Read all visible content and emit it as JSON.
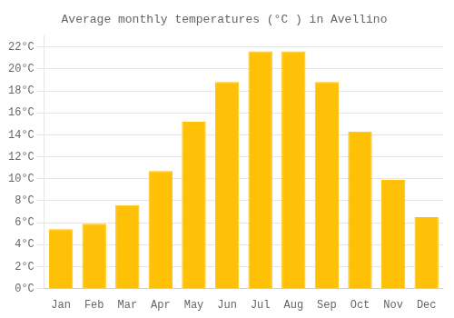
{
  "chart_data": {
    "type": "bar",
    "title": "Average monthly temperatures (°C ) in Avellino",
    "categories": [
      "Jan",
      "Feb",
      "Mar",
      "Apr",
      "May",
      "Jun",
      "Jul",
      "Aug",
      "Sep",
      "Oct",
      "Nov",
      "Dec"
    ],
    "values": [
      5.4,
      5.9,
      7.6,
      10.7,
      15.2,
      18.8,
      21.6,
      21.6,
      18.8,
      14.3,
      9.9,
      6.5
    ],
    "color": "#FFC107",
    "ylim": [
      0,
      23
    ],
    "yticks": [
      {
        "value": 0,
        "label": "0°C"
      },
      {
        "value": 2,
        "label": "2°C"
      },
      {
        "value": 4,
        "label": "4°C"
      },
      {
        "value": 6,
        "label": "6°C"
      },
      {
        "value": 8,
        "label": "8°C"
      },
      {
        "value": 10,
        "label": "10°C"
      },
      {
        "value": 12,
        "label": "12°C"
      },
      {
        "value": 14,
        "label": "14°C"
      },
      {
        "value": 16,
        "label": "16°C"
      },
      {
        "value": 18,
        "label": "18°C"
      },
      {
        "value": 20,
        "label": "20°C"
      },
      {
        "value": 22,
        "label": "22°C"
      }
    ],
    "grid": true
  }
}
